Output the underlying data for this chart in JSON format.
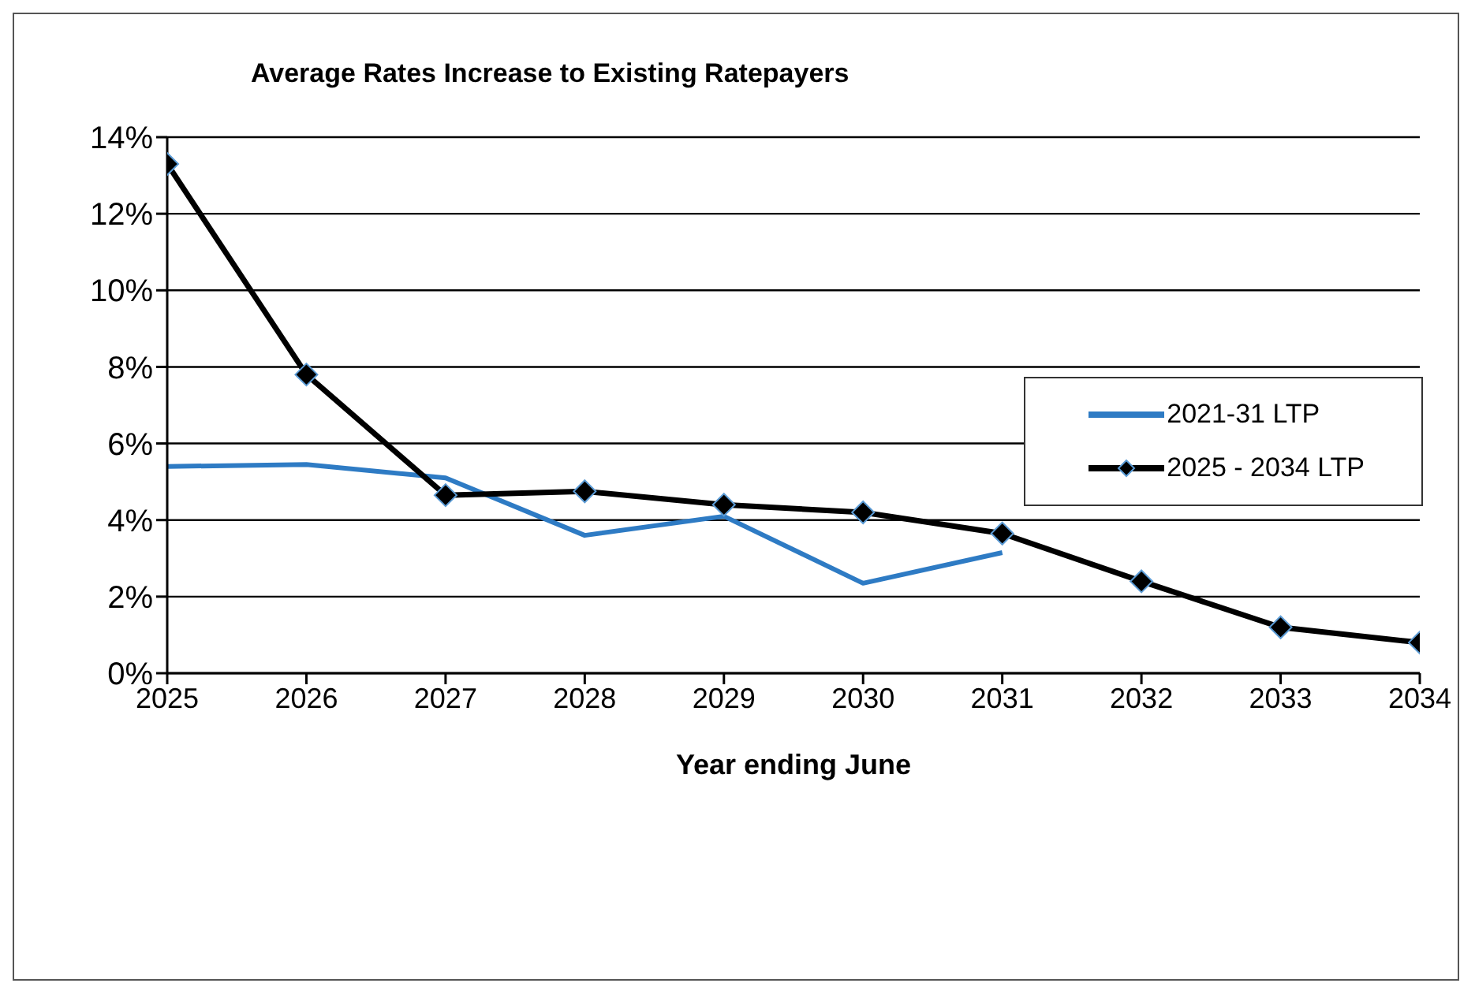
{
  "chart_data": {
    "type": "line",
    "title": "Average Rates Increase to Existing Ratepayers",
    "xlabel": "Year ending June",
    "x": [
      2025,
      2026,
      2027,
      2028,
      2029,
      2030,
      2031,
      2032,
      2033,
      2034
    ],
    "xlim": [
      2025,
      2034
    ],
    "xticks": [
      2025,
      2026,
      2027,
      2028,
      2029,
      2030,
      2031,
      2032,
      2033,
      2034
    ],
    "ylim": [
      0,
      14
    ],
    "yticks": [
      {
        "value": 0,
        "label": "0%"
      },
      {
        "value": 2,
        "label": "2%"
      },
      {
        "value": 4,
        "label": "4%"
      },
      {
        "value": 6,
        "label": "6%"
      },
      {
        "value": 8,
        "label": "8%"
      },
      {
        "value": 10,
        "label": "10%"
      },
      {
        "value": 12,
        "label": "12%"
      },
      {
        "value": 14,
        "label": "14%"
      }
    ],
    "grid": "y",
    "legend": "right",
    "series": [
      {
        "name": "2021-31 LTP",
        "color": "#2e7bc4",
        "marker": "none",
        "values": [
          5.4,
          5.45,
          5.1,
          3.6,
          4.1,
          2.35,
          3.15,
          null,
          null,
          null
        ]
      },
      {
        "name": "2025 - 2034 LTP",
        "color": "#000000",
        "marker": "diamond",
        "values": [
          13.3,
          7.8,
          4.65,
          4.75,
          4.4,
          4.2,
          3.65,
          2.4,
          1.2,
          0.8
        ]
      }
    ]
  }
}
